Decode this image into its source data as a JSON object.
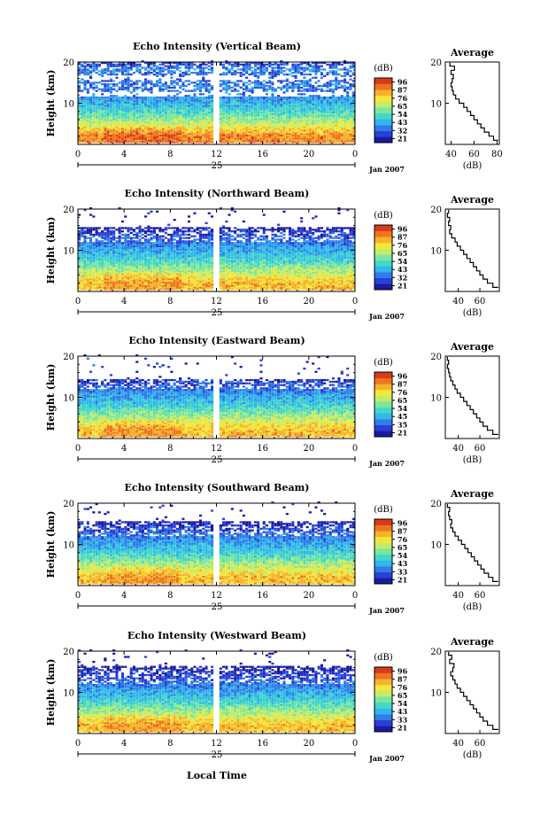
{
  "figure": {
    "bottom_xlabel": "Local Time",
    "date_label": "Jan 2007",
    "day_label": "25",
    "ylabel": "Height (km)",
    "colorbar_label": "(dB)",
    "colorbar_ticks": [
      [
        "96",
        "87",
        "76",
        "65",
        "54",
        "43",
        "32",
        "21"
      ],
      [
        "96",
        "87",
        "76",
        "65",
        "54",
        "43",
        "32",
        "21"
      ],
      [
        "96",
        "87",
        "76",
        "65",
        "54",
        "45",
        "35",
        "21"
      ],
      [
        "96",
        "87",
        "76",
        "65",
        "54",
        "43",
        "33",
        "21"
      ],
      [
        "96",
        "87",
        "76",
        "65",
        "54",
        "43",
        "33",
        "21"
      ]
    ],
    "colormap": [
      "#1a1aa0",
      "#2a3fd6",
      "#2f7de8",
      "#31b6ee",
      "#43d6c9",
      "#7be6a0",
      "#c3ec6a",
      "#f5e63a",
      "#f7b22b",
      "#f0741f",
      "#d83a1a"
    ],
    "avg_title": "Average",
    "avg_xlabel": "(dB)"
  },
  "chart_data": [
    {
      "type": "heatmap",
      "title": "Echo Intensity (Vertical Beam)",
      "xlabel": "Local Time",
      "ylabel": "Height (km)",
      "x_ticks": [
        "0",
        "4",
        "8",
        "12",
        "16",
        "20",
        "0"
      ],
      "y_ticks": [
        "20",
        "10"
      ],
      "xlim": [
        0,
        24
      ],
      "ylim": [
        0,
        20
      ],
      "gap_hours": [
        11.6,
        12.2
      ],
      "profile": {
        "heights": [
          2,
          4,
          6,
          8,
          10,
          12,
          14,
          16,
          18,
          19.5
        ],
        "db": [
          70,
          62,
          55,
          49,
          45,
          40,
          41,
          38,
          42,
          36
        ]
      },
      "average": {
        "title": "Average",
        "xlabel": "(dB)",
        "x_ticks": [
          "40",
          "60",
          "80"
        ],
        "y_ticks": [
          "20",
          "10"
        ],
        "xlim": [
          35,
          82
        ],
        "heights": [
          1,
          2,
          3,
          4,
          5,
          6,
          7,
          8,
          9,
          10,
          11,
          12,
          13,
          14,
          15,
          16,
          17,
          18,
          19,
          19.8
        ],
        "db": [
          81,
          77,
          73,
          69,
          66,
          63,
          60,
          57,
          54,
          51,
          47,
          44,
          42,
          41,
          40,
          41,
          42,
          40,
          43,
          39
        ]
      }
    },
    {
      "type": "heatmap",
      "title": "Echo Intensity (Northward Beam)",
      "xlabel": "Local Time",
      "ylabel": "Height (km)",
      "x_ticks": [
        "0",
        "4",
        "8",
        "12",
        "16",
        "20",
        "0"
      ],
      "y_ticks": [
        "20",
        "10"
      ],
      "xlim": [
        0,
        24
      ],
      "ylim": [
        0,
        20
      ],
      "gap_hours": [
        11.6,
        12.2
      ],
      "profile": {
        "heights": [
          2,
          4,
          6,
          8,
          10,
          12,
          14,
          15
        ],
        "db": [
          66,
          60,
          54,
          48,
          44,
          40,
          36,
          33
        ]
      },
      "average": {
        "title": "Average",
        "xlabel": "(dB)",
        "x_ticks": [
          "40",
          "60"
        ],
        "y_ticks": [
          "20",
          "10"
        ],
        "xlim": [
          28,
          78
        ],
        "heights": [
          1,
          2,
          3,
          4,
          5,
          6,
          7,
          8,
          9,
          10,
          11,
          12,
          13,
          14,
          15,
          16,
          17,
          18,
          19,
          19.8
        ],
        "db": [
          77,
          72,
          67,
          63,
          60,
          57,
          54,
          51,
          48,
          45,
          42,
          39,
          37,
          34,
          32,
          33,
          31,
          32,
          30,
          31
        ]
      }
    },
    {
      "type": "heatmap",
      "title": "Echo Intensity (Eastward Beam)",
      "xlabel": "Local Time",
      "ylabel": "Height (km)",
      "x_ticks": [
        "0",
        "4",
        "8",
        "12",
        "16",
        "20",
        "0"
      ],
      "y_ticks": [
        "20",
        "10"
      ],
      "xlim": [
        0,
        24
      ],
      "ylim": [
        0,
        20
      ],
      "gap_hours": [
        11.6,
        12.2
      ],
      "profile": {
        "heights": [
          2,
          4,
          6,
          8,
          10,
          12,
          14
        ],
        "db": [
          66,
          60,
          54,
          48,
          44,
          40,
          35
        ]
      },
      "average": {
        "title": "Average",
        "xlabel": "(dB)",
        "x_ticks": [
          "40",
          "60"
        ],
        "y_ticks": [
          "20",
          "10"
        ],
        "xlim": [
          28,
          78
        ],
        "heights": [
          1,
          2,
          3,
          4,
          5,
          6,
          7,
          8,
          9,
          10,
          11,
          12,
          13,
          14,
          15,
          16,
          17,
          18,
          19,
          19.8
        ],
        "db": [
          77,
          72,
          67,
          63,
          60,
          57,
          54,
          51,
          48,
          45,
          42,
          39,
          37,
          35,
          33,
          32,
          31,
          30,
          31,
          30
        ]
      }
    },
    {
      "type": "heatmap",
      "title": "Echo Intensity (Southward Beam)",
      "xlabel": "Local Time",
      "ylabel": "Height (km)",
      "x_ticks": [
        "0",
        "4",
        "8",
        "12",
        "16",
        "20",
        "0"
      ],
      "y_ticks": [
        "20",
        "10"
      ],
      "xlim": [
        0,
        24
      ],
      "ylim": [
        0,
        20
      ],
      "gap_hours": [
        11.6,
        12.2
      ],
      "profile": {
        "heights": [
          2,
          4,
          6,
          8,
          10,
          12,
          14,
          15
        ],
        "db": [
          66,
          60,
          54,
          48,
          44,
          40,
          36,
          33
        ]
      },
      "average": {
        "title": "Average",
        "xlabel": "(dB)",
        "x_ticks": [
          "40",
          "60"
        ],
        "y_ticks": [
          "20",
          "10"
        ],
        "xlim": [
          28,
          78
        ],
        "heights": [
          1,
          2,
          3,
          4,
          5,
          6,
          7,
          8,
          9,
          10,
          11,
          12,
          13,
          14,
          15,
          16,
          17,
          18,
          19,
          19.8
        ],
        "db": [
          77,
          72,
          68,
          64,
          61,
          58,
          55,
          52,
          49,
          46,
          43,
          40,
          37,
          35,
          33,
          34,
          32,
          31,
          32,
          30
        ]
      }
    },
    {
      "type": "heatmap",
      "title": "Echo Intensity (Westward Beam)",
      "xlabel": "Local Time",
      "ylabel": "Height (km)",
      "x_ticks": [
        "0",
        "4",
        "8",
        "12",
        "16",
        "20",
        "0"
      ],
      "y_ticks": [
        "20",
        "10"
      ],
      "xlim": [
        0,
        24
      ],
      "ylim": [
        0,
        20
      ],
      "gap_hours": [
        11.6,
        12.2
      ],
      "profile": {
        "heights": [
          2,
          4,
          6,
          8,
          10,
          12,
          14,
          16
        ],
        "db": [
          66,
          60,
          54,
          48,
          44,
          40,
          36,
          33
        ]
      },
      "average": {
        "title": "Average",
        "xlabel": "(dB)",
        "x_ticks": [
          "40",
          "60"
        ],
        "y_ticks": [
          "20",
          "10"
        ],
        "xlim": [
          28,
          78
        ],
        "heights": [
          1,
          2,
          3,
          4,
          5,
          6,
          7,
          8,
          9,
          10,
          11,
          12,
          13,
          14,
          15,
          16,
          17,
          18,
          19,
          19.8
        ],
        "db": [
          77,
          72,
          67,
          63,
          60,
          57,
          54,
          51,
          48,
          45,
          42,
          39,
          37,
          35,
          33,
          35,
          36,
          32,
          34,
          31
        ]
      }
    }
  ]
}
